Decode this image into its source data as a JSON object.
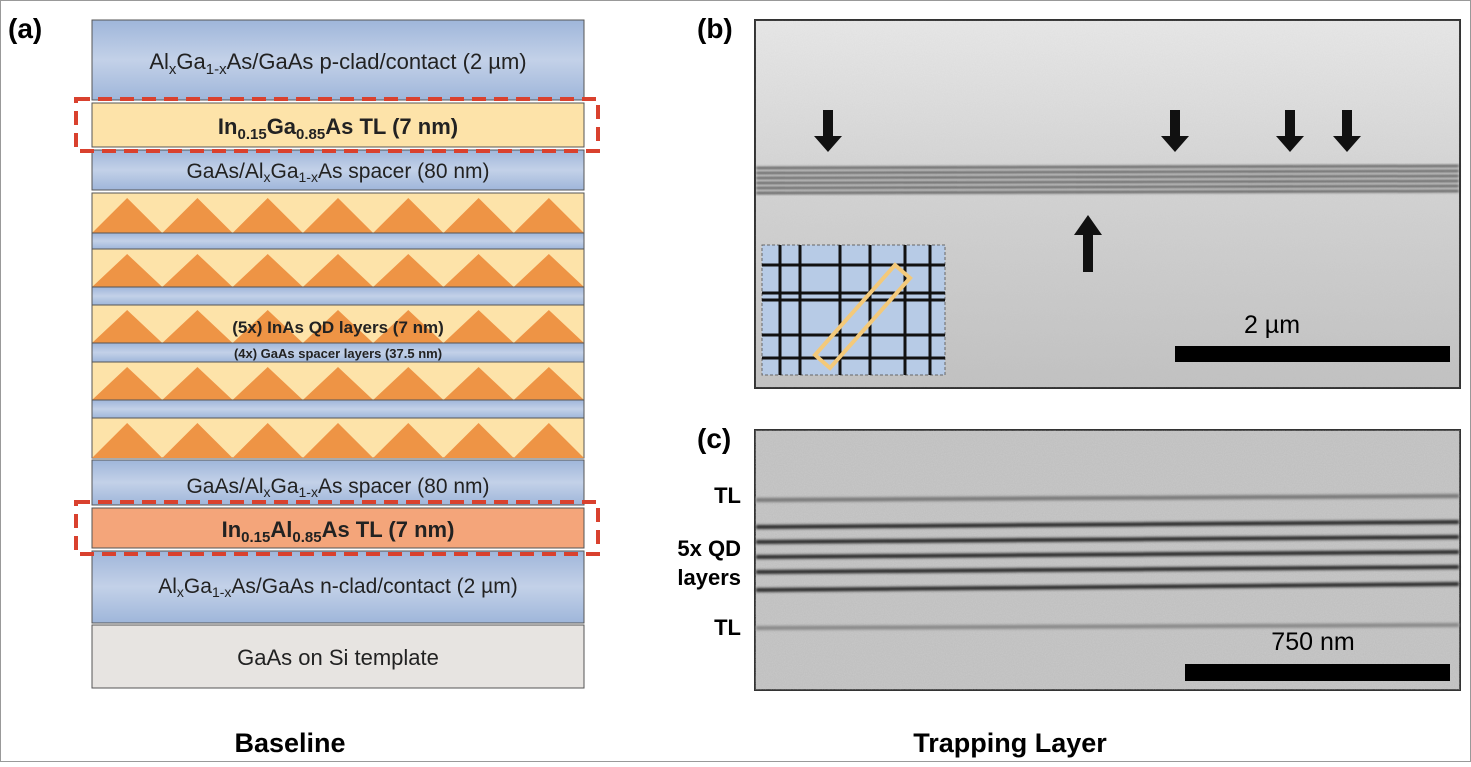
{
  "panel_a": {
    "label": "(a)",
    "caption": "Baseline",
    "layers": [
      [
        "Al",
        "x",
        "Ga",
        "1-x",
        "As/GaAs p-clad/contact (2 µm)"
      ],
      [
        "In",
        "0.15",
        "Ga",
        "0.85",
        "As TL (7 nm)"
      ],
      [
        "GaAs/Al",
        "x",
        "Ga",
        "1-x",
        "As spacer (80 nm)"
      ],
      [
        "(5x) InAs QD layers (7 nm)"
      ],
      [
        "(4x) GaAs spacer layers (37.5 nm)"
      ],
      [
        "GaAs/Al",
        "x",
        "Ga",
        "1-x",
        "As spacer (80 nm)"
      ],
      [
        "In",
        "0.15",
        "Al",
        "0.85",
        "As TL (7 nm)"
      ],
      [
        "Al",
        "x",
        "Ga",
        "1-x",
        "As/GaAs n-clad/contact (2 µm)"
      ],
      [
        "GaAs on Si template"
      ]
    ]
  },
  "panel_b": {
    "label": "(b)",
    "scale_bar": "2 µm"
  },
  "panel_c": {
    "label": "(c)",
    "scale_bar": "750 nm",
    "annotations": [
      "TL",
      "5x QD",
      "layers",
      "TL"
    ]
  },
  "caption_right": "Trapping Layer"
}
